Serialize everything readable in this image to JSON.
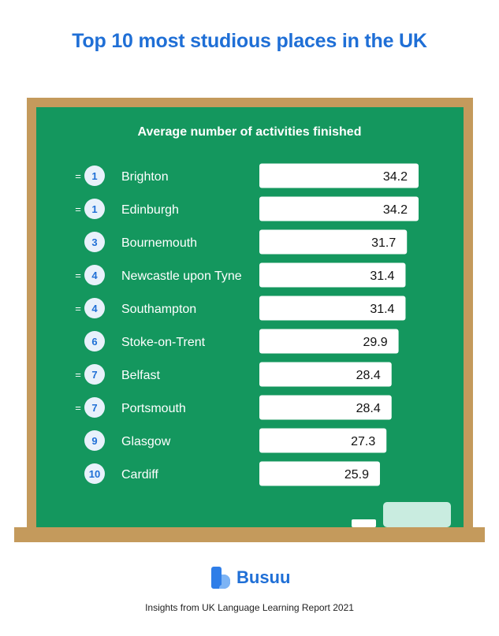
{
  "title": "Top 10 most studious places in the UK",
  "colors": {
    "title": "#1f6fd6",
    "board": "#14975e",
    "frame": "#c49a5c",
    "bar": "#ffffff",
    "rank_circle": "#e8f1fb",
    "rank_text": "#1f6fd6"
  },
  "chart_data": {
    "type": "bar",
    "orientation": "horizontal",
    "subtitle": "Average number of activities finished",
    "tie_marker": "=",
    "rows": [
      {
        "rank": "1",
        "tied": true,
        "category": "Brighton",
        "value": 34.2
      },
      {
        "rank": "1",
        "tied": true,
        "category": "Edinburgh",
        "value": 34.2
      },
      {
        "rank": "3",
        "tied": false,
        "category": "Bournemouth",
        "value": 31.7
      },
      {
        "rank": "4",
        "tied": true,
        "category": "Newcastle upon Tyne",
        "value": 31.4
      },
      {
        "rank": "4",
        "tied": true,
        "category": "Southampton",
        "value": 31.4
      },
      {
        "rank": "6",
        "tied": false,
        "category": "Stoke-on-Trent",
        "value": 29.9
      },
      {
        "rank": "7",
        "tied": true,
        "category": "Belfast",
        "value": 28.4
      },
      {
        "rank": "7",
        "tied": true,
        "category": "Portsmouth",
        "value": 28.4
      },
      {
        "rank": "9",
        "tied": false,
        "category": "Glasgow",
        "value": 27.3
      },
      {
        "rank": "10",
        "tied": false,
        "category": "Cardiff",
        "value": 25.9
      }
    ]
  },
  "logo": {
    "text": "Busuu",
    "icon": "busuu-logo-icon"
  },
  "footer": "Insights from UK Language Learning Report 2021"
}
